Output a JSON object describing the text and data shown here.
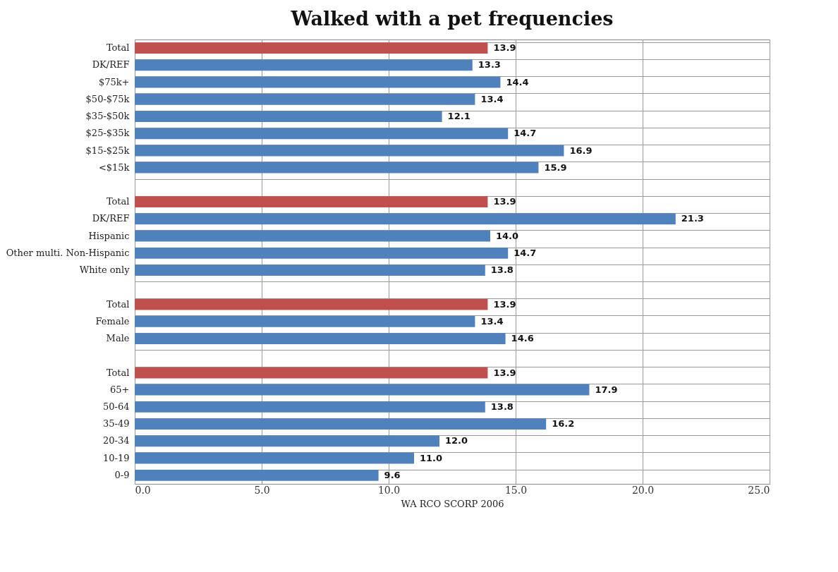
{
  "chart_data": {
    "type": "bar",
    "orientation": "horizontal",
    "title": "Walked with a pet frequencies",
    "xlabel": "WA RCO SCORP 2006",
    "categories": [
      "Total",
      "DK/REF",
      "$75k+",
      "$50-$75k",
      "$35-$50k",
      "$25-$35k",
      "$15-$25k",
      "<$15k",
      null,
      "Total",
      "DK/REF",
      "Hispanic",
      "Other multi. Non-Hispanic",
      "White only",
      null,
      "Total",
      "Female",
      "Male",
      null,
      "Total",
      "65+",
      "50-64",
      "35-49",
      "20-34",
      "10-19",
      "0-9"
    ],
    "values": [
      13.9,
      13.3,
      14.4,
      13.4,
      12.1,
      14.7,
      16.9,
      15.9,
      null,
      13.9,
      21.3,
      14.0,
      14.7,
      13.8,
      null,
      13.9,
      13.4,
      14.6,
      null,
      13.9,
      17.9,
      13.8,
      16.2,
      12.0,
      11.0,
      9.6
    ],
    "colors": [
      "#c0504d",
      "#4f81bd",
      "#4f81bd",
      "#4f81bd",
      "#4f81bd",
      "#4f81bd",
      "#4f81bd",
      "#4f81bd",
      null,
      "#c0504d",
      "#4f81bd",
      "#4f81bd",
      "#4f81bd",
      "#4f81bd",
      null,
      "#c0504d",
      "#4f81bd",
      "#4f81bd",
      null,
      "#c0504d",
      "#4f81bd",
      "#4f81bd",
      "#4f81bd",
      "#4f81bd",
      "#4f81bd",
      "#4f81bd"
    ],
    "xlim": [
      0,
      25
    ],
    "xticks": [
      {
        "value": 0,
        "label": "0.0"
      },
      {
        "value": 5,
        "label": "5.0"
      },
      {
        "value": 10,
        "label": "10.0"
      },
      {
        "value": 15,
        "label": "15.0"
      },
      {
        "value": 20,
        "label": "20.0"
      },
      {
        "value": 25,
        "label": "25.0"
      }
    ],
    "value_labels": [
      "13.9",
      "13.3",
      "14.4",
      "13.4",
      "12.1",
      "14.7",
      "16.9",
      "15.9",
      null,
      "13.9",
      "21.3",
      "14.0",
      "14.7",
      "13.8",
      null,
      "13.9",
      "13.4",
      "14.6",
      null,
      "13.9",
      "17.9",
      "13.8",
      "16.2",
      "12.0",
      "11.0",
      "9.6"
    ],
    "grid": true
  }
}
